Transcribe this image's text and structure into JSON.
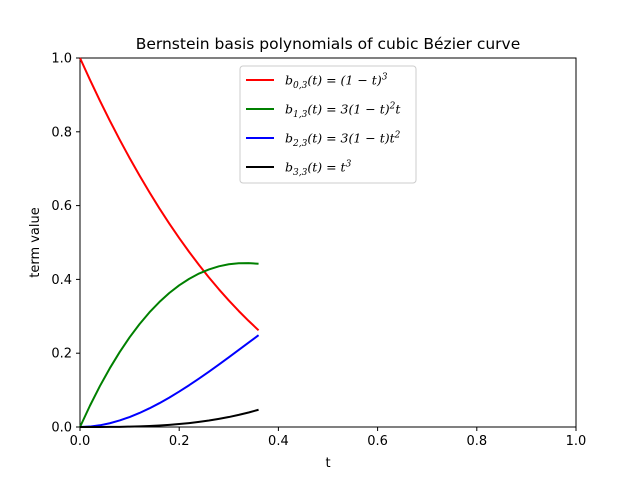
{
  "chart_data": {
    "type": "line",
    "title": "Bernstein basis polynomials of cubic Bézier curve",
    "xlabel": "t",
    "ylabel": "term value",
    "xlim": [
      0.0,
      1.0
    ],
    "ylim": [
      0.0,
      1.0
    ],
    "x_ticks": [
      "0.0",
      "0.2",
      "0.4",
      "0.6",
      "0.8",
      "1.0"
    ],
    "y_ticks": [
      "0.0",
      "0.2",
      "0.4",
      "0.6",
      "0.8",
      "1.0"
    ],
    "legend_position": "upper center",
    "grid": false,
    "x": [
      0.0,
      0.02,
      0.04,
      0.06,
      0.08,
      0.1,
      0.12,
      0.14,
      0.16,
      0.18,
      0.2,
      0.22,
      0.24,
      0.26,
      0.28,
      0.3,
      0.32,
      0.34,
      0.36
    ],
    "series": [
      {
        "name": "b_{0,3}(t) = (1 − t)^3",
        "color": "#ff0000",
        "values": [
          1.0,
          0.9412,
          0.8847,
          0.8306,
          0.7787,
          0.729,
          0.6815,
          0.6361,
          0.5927,
          0.5514,
          0.512,
          0.4746,
          0.439,
          0.4052,
          0.3732,
          0.343,
          0.3144,
          0.2875,
          0.2621
        ]
      },
      {
        "name": "b_{1,3}(t) = 3(1 − t)^2 t",
        "color": "#008000",
        "values": [
          0.0,
          0.0576,
          0.1106,
          0.159,
          0.2031,
          0.243,
          0.2788,
          0.3107,
          0.3387,
          0.3631,
          0.384,
          0.4015,
          0.4159,
          0.4271,
          0.4355,
          0.441,
          0.4439,
          0.4442,
          0.4424
        ]
      },
      {
        "name": "b_{2,3}(t) = 3(1 − t) t^2",
        "color": "#0000ff",
        "values": [
          0.0,
          0.0012,
          0.0046,
          0.0102,
          0.0177,
          0.027,
          0.038,
          0.0506,
          0.0645,
          0.0797,
          0.096,
          0.1132,
          0.1313,
          0.15,
          0.1693,
          0.189,
          0.2089,
          0.2289,
          0.2488
        ]
      },
      {
        "name": "b_{3,3}(t) = t^3",
        "color": "#000000",
        "values": [
          0.0,
          0.0,
          0.0001,
          0.0002,
          0.0005,
          0.001,
          0.0017,
          0.0027,
          0.0041,
          0.0058,
          0.008,
          0.0106,
          0.0138,
          0.0176,
          0.022,
          0.027,
          0.0328,
          0.0393,
          0.0467
        ]
      }
    ]
  },
  "legend": {
    "entries": [
      {
        "base": "b",
        "sub": "0,3",
        "expr_pre": "(t) = (1 − t)",
        "sup": "3",
        "expr_post": ""
      },
      {
        "base": "b",
        "sub": "1,3",
        "expr_pre": "(t) = 3(1 − t)",
        "sup": "2",
        "expr_post": "t"
      },
      {
        "base": "b",
        "sub": "2,3",
        "expr_pre": "(t) = 3(1 − t)t",
        "sup": "2",
        "expr_post": ""
      },
      {
        "base": "b",
        "sub": "3,3",
        "expr_pre": "(t) = t",
        "sup": "3",
        "expr_post": ""
      }
    ]
  }
}
